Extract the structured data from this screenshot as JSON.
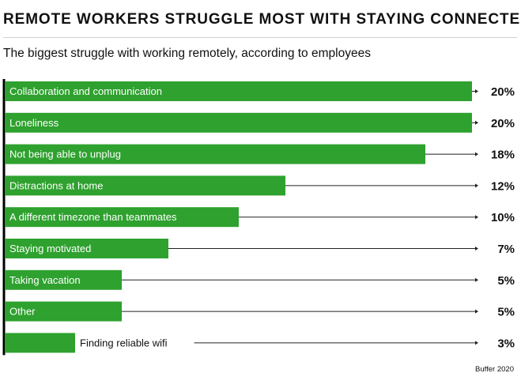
{
  "header": {
    "title": "REMOTE WORKERS STRUGGLE MOST WITH STAYING CONNECTED",
    "subtitle": "The biggest struggle with working remotely, according to employees"
  },
  "footer": {
    "source": "Buffer 2020"
  },
  "colors": {
    "bar": "#2ea12e",
    "axis": "#000000",
    "leader": "#222222",
    "text": "#111111"
  },
  "chart_data": {
    "type": "bar",
    "orientation": "horizontal",
    "title": "REMOTE WORKERS STRUGGLE MOST WITH STAYING CONNECTED",
    "subtitle": "The biggest struggle with working remotely, according to employees",
    "categories": [
      "Collaboration and communication",
      "Loneliness",
      "Not being able to unplug",
      "Distractions at home",
      "A different timezone than teammates",
      "Staying motivated",
      "Taking vacation",
      "Other",
      "Finding reliable wifi"
    ],
    "values": [
      20,
      20,
      18,
      12,
      10,
      7,
      5,
      5,
      3
    ],
    "value_labels": [
      "20%",
      "20%",
      "18%",
      "12%",
      "10%",
      "7%",
      "5%",
      "5%",
      "3%"
    ],
    "unit": "%",
    "xlim": [
      0,
      20
    ],
    "grid": false,
    "legend": "none"
  }
}
